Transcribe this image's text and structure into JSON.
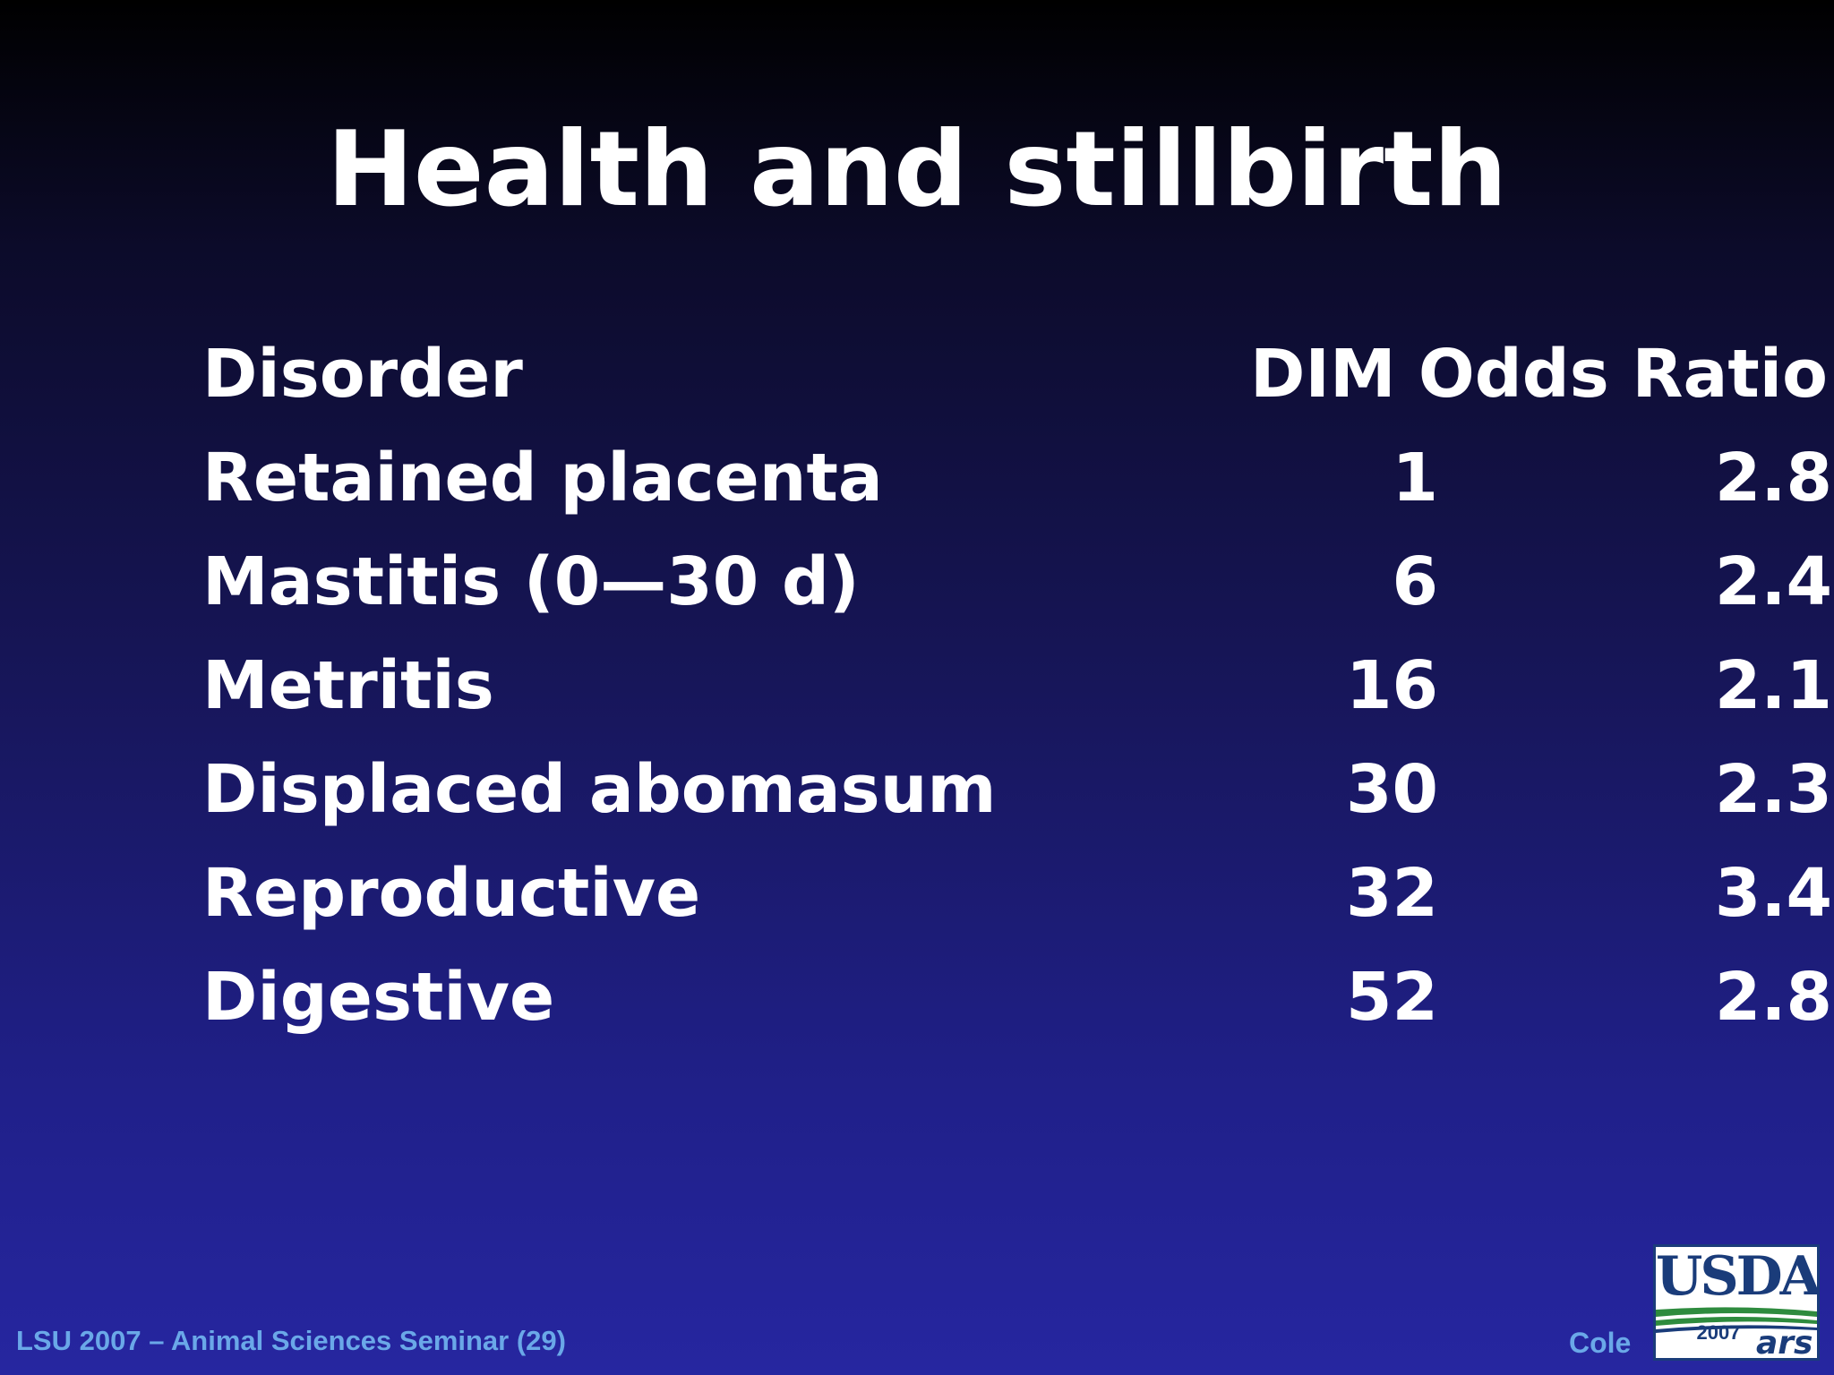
{
  "slide": {
    "title": "Health and stillbirth"
  },
  "table": {
    "headers": {
      "disorder": "Disorder",
      "dim": "DIM",
      "odds_ratio": "Odds Ratio"
    },
    "rows": [
      {
        "disorder": "Retained placenta",
        "dim": "1",
        "odds_ratio": "2.8"
      },
      {
        "disorder": "Mastitis (0—30 d)",
        "dim": "6",
        "odds_ratio": "2.4"
      },
      {
        "disorder": "Metritis",
        "dim": "16",
        "odds_ratio": "2.1"
      },
      {
        "disorder": "Displaced abomasum",
        "dim": "30",
        "odds_ratio": "2.3"
      },
      {
        "disorder": "Reproductive",
        "dim": "32",
        "odds_ratio": "3.4"
      },
      {
        "disorder": "Digestive",
        "dim": "52",
        "odds_ratio": "2.8"
      }
    ]
  },
  "footer": {
    "event": "LSU 2007 – Animal Sciences Seminar (29)",
    "author": "Cole"
  },
  "logo": {
    "agency": "USDA",
    "year": "2007",
    "unit": "ars"
  },
  "colors": {
    "footer_text": "#6aa8e8",
    "logo_blue": "#1a3c7a",
    "logo_green": "#2e8b3e"
  }
}
